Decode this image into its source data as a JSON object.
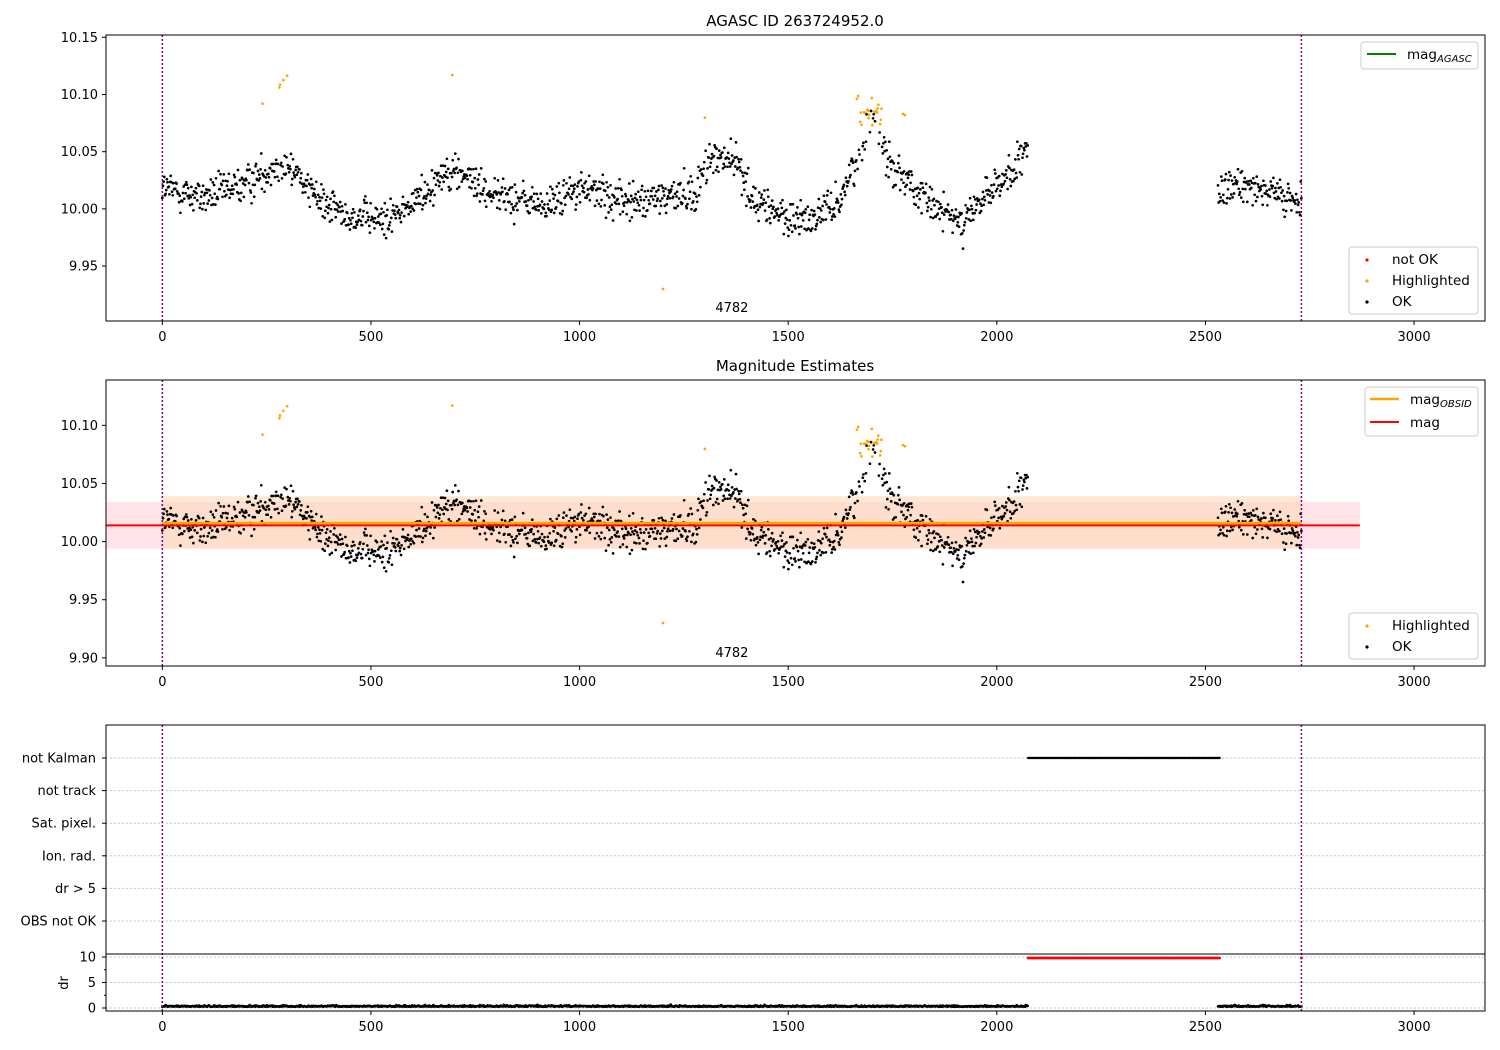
{
  "colors": {
    "ok": "#000000",
    "highlighted": "#ffa500",
    "not_ok": "#ff0000",
    "mag_agasc": "#008000",
    "mag_obsid": "#ffa500",
    "mag": "#ff0000",
    "obs_boundary": "#800080",
    "band_obsid": "#ffdab9",
    "band_mag": "#ffc0cb"
  },
  "chart_data": [
    {
      "type": "scatter",
      "title": "AGASC ID 263724952.0",
      "xlim": [
        -135,
        3170
      ],
      "ylim": [
        9.902,
        10.152
      ],
      "xticks": [
        "0",
        "500",
        "1000",
        "1500",
        "2000",
        "2500",
        "3000"
      ],
      "yticks": [
        "9.95",
        "10.00",
        "10.05",
        "10.10",
        "10.15"
      ],
      "obs_boundaries_x": [
        0,
        2730
      ],
      "obs_label": {
        "text": "4782",
        "x": 1365
      },
      "legend_lines": [
        {
          "label_main": "mag",
          "label_sub": "AGASC",
          "color_key": "mag_agasc"
        }
      ],
      "legend_points": [
        {
          "label": "not OK",
          "color_key": "not_ok"
        },
        {
          "label": "Highlighted",
          "color_key": "highlighted"
        },
        {
          "label": "OK",
          "color_key": "ok"
        }
      ],
      "legend_placement": [
        "top-right",
        "lower-right"
      ],
      "grid": false
    },
    {
      "type": "scatter",
      "title": "Magnitude Estimates",
      "xlim": [
        -135,
        3170
      ],
      "ylim": [
        9.893,
        10.139
      ],
      "xticks": [
        "0",
        "500",
        "1000",
        "1500",
        "2000",
        "2500",
        "3000"
      ],
      "yticks": [
        "9.90",
        "9.95",
        "10.00",
        "10.05",
        "10.10"
      ],
      "obs_boundaries_x": [
        0,
        2730
      ],
      "obs_label": {
        "text": "4782",
        "x": 1365
      },
      "mag_line": {
        "value": 10.014,
        "x": [
          -135,
          2870
        ],
        "band": [
          9.994,
          10.034
        ]
      },
      "mag_obsid_line": {
        "value": 10.016,
        "x": [
          0,
          2730
        ],
        "band": [
          9.994,
          10.039
        ]
      },
      "legend_lines": [
        {
          "label_main": "mag",
          "label_sub": "OBSID",
          "color_key": "mag_obsid"
        },
        {
          "label_main": "mag",
          "label_sub": "",
          "color_key": "mag"
        }
      ],
      "legend_points": [
        {
          "label": "Highlighted",
          "color_key": "highlighted"
        },
        {
          "label": "OK",
          "color_key": "ok"
        }
      ],
      "legend_placement": [
        "top-right",
        "lower-right"
      ],
      "grid": false
    },
    {
      "type": "scatter",
      "title": "",
      "xlim": [
        -135,
        3170
      ],
      "xticks": [
        "0",
        "500",
        "1000",
        "1500",
        "2000",
        "2500",
        "3000"
      ],
      "flag_rows": [
        "not Kalman",
        "not track",
        "Sat. pixel.",
        "Ion. rad.",
        "dr > 5",
        "OBS not OK"
      ],
      "flag_segments": [
        {
          "row": "not Kalman",
          "x": [
            2075,
            2535
          ]
        }
      ],
      "dr": {
        "ylabel": "dr",
        "yticks": [
          "0",
          "5",
          "10"
        ],
        "ylim": [
          -0.5,
          10.5
        ],
        "clipped_segments": [
          {
            "x": [
              2075,
              2535
            ],
            "value": 10
          }
        ],
        "clipped_points_x": [
          2730
        ],
        "typical_range": [
          0,
          0.6
        ]
      },
      "grid": true
    }
  ]
}
